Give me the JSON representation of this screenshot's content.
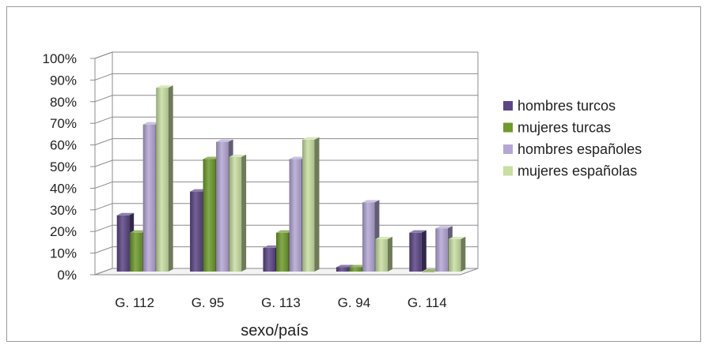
{
  "chart_data": {
    "type": "bar",
    "categories": [
      "G. 112",
      "G. 95",
      "G. 113",
      "G. 94",
      "G. 114"
    ],
    "series": [
      {
        "name": "hombres turcos",
        "color": "#5b4685",
        "values": [
          26,
          37,
          11,
          2,
          18
        ]
      },
      {
        "name": "mujeres turcas",
        "color": "#6e9a2e",
        "values": [
          18,
          52,
          18,
          2,
          0
        ]
      },
      {
        "name": "hombres españoles",
        "color": "#b4a7d4",
        "values": [
          68,
          60,
          52,
          32,
          20
        ]
      },
      {
        "name": "mujeres españolas",
        "color": "#c8dea2",
        "values": [
          85,
          53,
          61,
          15,
          15
        ]
      }
    ],
    "title": "",
    "xlabel": "sexo/país",
    "ylabel": "",
    "ylim": [
      0,
      100
    ],
    "yticks": [
      "0%",
      "10%",
      "20%",
      "30%",
      "40%",
      "50%",
      "60%",
      "70%",
      "80%",
      "90%",
      "100%"
    ],
    "grid": true,
    "legend_position": "right"
  }
}
